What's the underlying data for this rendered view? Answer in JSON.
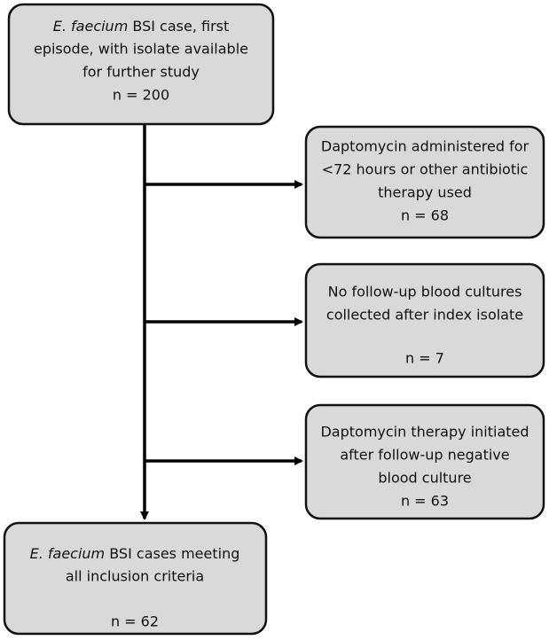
{
  "nodes": [
    {
      "italic": "E. faecium",
      "lines": [
        "BSI case, first",
        "episode, with isolate available",
        "for further study"
      ],
      "n": "n = 200"
    },
    {
      "lines": [
        "Daptomycin administered for",
        "<72 hours or other antibiotic",
        "therapy used"
      ],
      "n": "n = 68"
    },
    {
      "lines": [
        "No follow-up blood cultures",
        "collected after index isolate"
      ],
      "n": "n = 7"
    },
    {
      "lines": [
        "Daptomycin therapy initiated",
        "after follow-up negative",
        "blood culture"
      ],
      "n": "n = 63"
    },
    {
      "italic": "E. faecium",
      "lines": [
        "BSI cases meeting",
        "all inclusion criteria"
      ],
      "n": "n = 62"
    }
  ]
}
